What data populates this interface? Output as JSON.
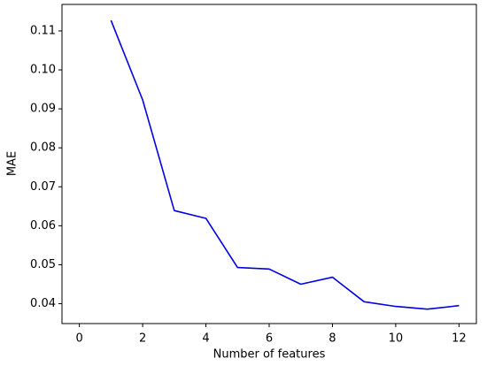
{
  "chart_data": {
    "type": "line",
    "x_label": "Number of features",
    "y_label": "MAE",
    "x": [
      1,
      2,
      3,
      4,
      5,
      6,
      7,
      8,
      9,
      10,
      11,
      12
    ],
    "series": [
      {
        "color": "#0000e6",
        "values": [
          0.1127,
          0.0923,
          0.0639,
          0.0619,
          0.0493,
          0.0489,
          0.045,
          0.0468,
          0.0405,
          0.0393,
          0.0386,
          0.0395
        ]
      }
    ],
    "xlim": [
      -0.55,
      12.55
    ],
    "xticks": [
      0,
      2,
      4,
      6,
      8,
      10,
      12
    ],
    "ylim": [
      0.0349,
      0.1168
    ],
    "yticks": [
      0.04,
      0.05,
      0.06,
      0.07,
      0.08,
      0.09,
      {
        "value": 0.1,
        "label": "0.10"
      },
      0.11
    ],
    "grid": false
  }
}
